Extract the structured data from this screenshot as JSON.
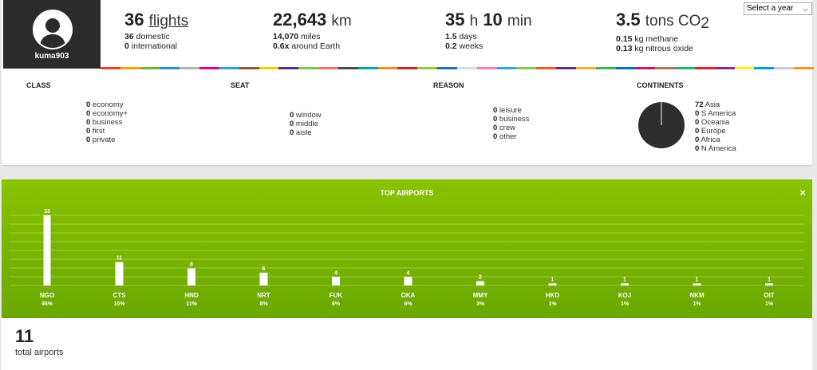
{
  "profile": {
    "username": "kuma903"
  },
  "year_select": {
    "label": "Select a year"
  },
  "stats": {
    "flights": {
      "value": "36",
      "unit": "flights",
      "line1_value": "36",
      "line1_label": "domestic",
      "line2_value": "0",
      "line2_label": "international"
    },
    "distance": {
      "value": "22,643",
      "unit": "km",
      "line1_value": "14,070",
      "line1_label": "miles",
      "line2_value": "0.6x",
      "line2_label": "around Earth"
    },
    "duration": {
      "hours": "35",
      "h_unit": "h",
      "minutes": "10",
      "m_unit": "min",
      "line1_value": "1.5",
      "line1_label": "days",
      "line2_value": "0.2",
      "line2_label": "weeks"
    },
    "co2": {
      "value": "3.5",
      "unit": "tons CO",
      "sub": "2",
      "line1_value": "0.15",
      "line1_label": "kg methane",
      "line2_value": "0.13",
      "line2_label": "kg nitrous oxide"
    }
  },
  "colorbar": [
    "#e8412c",
    "#f7a600",
    "#6fb52c",
    "#2a8fd6",
    "#b3b3b3",
    "#e5007e",
    "#25a9c6",
    "#8a5a2b",
    "#f3d000",
    "#5c2d91",
    "#7ac943",
    "#ff6b6b",
    "#4a4a4a",
    "#00a99d",
    "#f28c28",
    "#c1272d",
    "#9bc43b",
    "#1d71b8",
    "#dcdcdc",
    "#ff7bac",
    "#29abe2",
    "#8dc63f",
    "#f15a24",
    "#662d91",
    "#fbb03b",
    "#39b54a",
    "#0071bc",
    "#d4145a",
    "#a67c52",
    "#22b573",
    "#ed1c24",
    "#93278f",
    "#fcee21",
    "#00a0e9",
    "#c7c7c7",
    "#f7931e"
  ],
  "sections": {
    "class": {
      "title": "CLASS",
      "items": [
        {
          "v": "0",
          "l": "economy"
        },
        {
          "v": "0",
          "l": "economy+"
        },
        {
          "v": "0",
          "l": "business"
        },
        {
          "v": "0",
          "l": "first"
        },
        {
          "v": "0",
          "l": "private"
        }
      ]
    },
    "seat": {
      "title": "SEAT",
      "items": [
        {
          "v": "0",
          "l": "window"
        },
        {
          "v": "0",
          "l": "middle"
        },
        {
          "v": "0",
          "l": "aisle"
        }
      ]
    },
    "reason": {
      "title": "REASON",
      "items": [
        {
          "v": "0",
          "l": "leisure"
        },
        {
          "v": "0",
          "l": "business"
        },
        {
          "v": "0",
          "l": "crew"
        },
        {
          "v": "0",
          "l": "other"
        }
      ]
    },
    "continents": {
      "title": "CONTINENTS",
      "items": [
        {
          "v": "72",
          "l": "Asia"
        },
        {
          "v": "0",
          "l": "S America"
        },
        {
          "v": "0",
          "l": "Oceania"
        },
        {
          "v": "0",
          "l": "Europe"
        },
        {
          "v": "0",
          "l": "Africa"
        },
        {
          "v": "0",
          "l": "N America"
        }
      ]
    }
  },
  "chart": {
    "title": "TOP AIRPORTS",
    "close_label": "×"
  },
  "chart_data": {
    "type": "bar",
    "title": "TOP AIRPORTS",
    "categories": [
      "NGO",
      "CTS",
      "HND",
      "NRT",
      "FUK",
      "OKA",
      "MMY",
      "HKD",
      "KOJ",
      "NKM",
      "OIT"
    ],
    "values": [
      33,
      11,
      8,
      6,
      4,
      4,
      2,
      1,
      1,
      1,
      1
    ],
    "percents": [
      "46%",
      "15%",
      "11%",
      "8%",
      "6%",
      "6%",
      "3%",
      "1%",
      "1%",
      "1%",
      "1%"
    ],
    "ylim": [
      0,
      33
    ],
    "grid": true
  },
  "summary": {
    "total_value": "11",
    "total_label": "total airports"
  }
}
